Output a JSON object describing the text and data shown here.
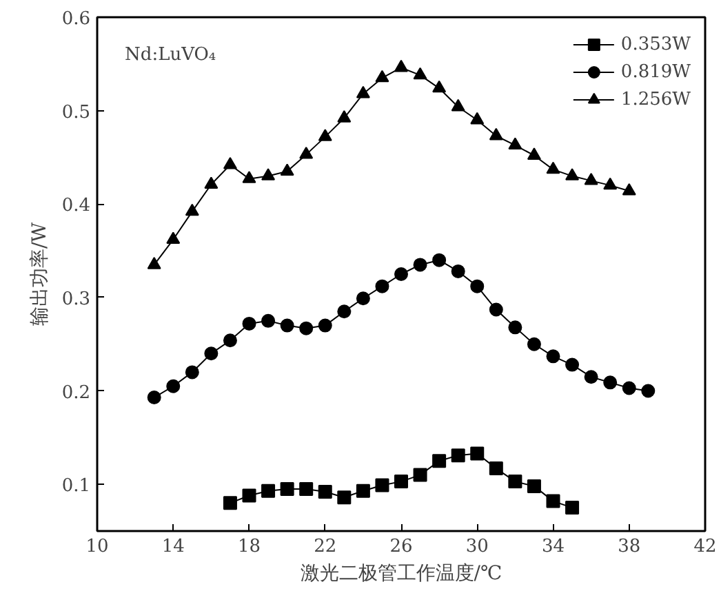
{
  "chart_data": {
    "type": "line",
    "xlabel": "激光二极管工作温度/℃",
    "ylabel": "输出功率/W",
    "xlim": [
      10,
      42
    ],
    "xticks": [
      10,
      14,
      18,
      22,
      26,
      30,
      34,
      38,
      42
    ],
    "ylim": [
      0.05,
      0.6
    ],
    "yticks": [
      0.1,
      0.2,
      0.3,
      0.4,
      0.5,
      0.6
    ],
    "legend": "top right",
    "grid": false,
    "annotations": [
      "Nd:LuVO₄"
    ],
    "series": [
      {
        "name": "0.353W",
        "color": "#000000",
        "marker": "square",
        "x": [
          17,
          18,
          19,
          20,
          21,
          22,
          23,
          24,
          25,
          26,
          27,
          28,
          29,
          30,
          31,
          32,
          33,
          34,
          35
        ],
        "values": [
          0.08,
          0.088,
          0.093,
          0.095,
          0.095,
          0.092,
          0.086,
          0.093,
          0.099,
          0.103,
          0.11,
          0.125,
          0.131,
          0.133,
          0.117,
          0.103,
          0.098,
          0.082,
          0.075
        ]
      },
      {
        "name": "0.819W",
        "color": "#000000",
        "marker": "circle",
        "x": [
          13,
          14,
          15,
          16,
          17,
          18,
          19,
          20,
          21,
          22,
          23,
          24,
          25,
          26,
          27,
          28,
          29,
          30,
          31,
          32,
          33,
          34,
          35,
          36,
          37,
          38,
          39
        ],
        "values": [
          0.193,
          0.205,
          0.22,
          0.24,
          0.254,
          0.272,
          0.275,
          0.27,
          0.267,
          0.27,
          0.285,
          0.299,
          0.312,
          0.325,
          0.335,
          0.34,
          0.328,
          0.312,
          0.287,
          0.268,
          0.25,
          0.237,
          0.228,
          0.215,
          0.209,
          0.203,
          0.2
        ]
      },
      {
        "name": "1.256W",
        "color": "#000000",
        "marker": "triangle",
        "x": [
          13,
          14,
          15,
          16,
          17,
          18,
          19,
          20,
          21,
          22,
          23,
          24,
          25,
          26,
          27,
          28,
          29,
          30,
          31,
          32,
          33,
          34,
          35,
          36,
          37,
          38
        ],
        "values": [
          0.335,
          0.362,
          0.392,
          0.421,
          0.442,
          0.427,
          0.43,
          0.435,
          0.453,
          0.472,
          0.492,
          0.518,
          0.535,
          0.546,
          0.538,
          0.524,
          0.504,
          0.49,
          0.473,
          0.463,
          0.452,
          0.437,
          0.43,
          0.425,
          0.42,
          0.414
        ]
      }
    ]
  }
}
